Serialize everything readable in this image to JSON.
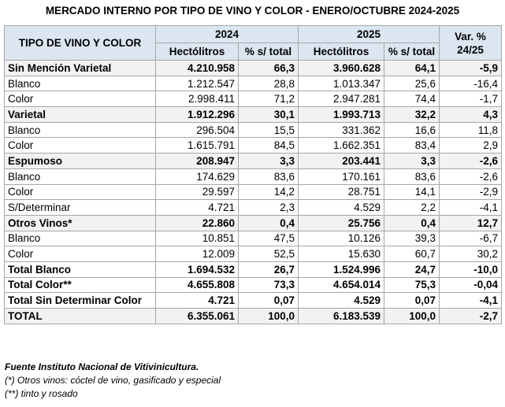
{
  "title": "MERCADO INTERNO POR TIPO DE VINO Y COLOR  - ENERO/OCTUBRE 2024-2025",
  "table": {
    "header": {
      "first": "TIPO DE VINO Y COLOR",
      "years": [
        "2024",
        "2025"
      ],
      "var": "Var. %\n24/25",
      "sub": [
        "Hectólitros",
        "% s/ total",
        "Hectólitros",
        "% s/ total"
      ]
    },
    "rows": [
      {
        "cells": [
          "Sin Mención Varietal",
          "4.210.958",
          "66,3",
          "3.960.628",
          "64,1",
          "-5,9"
        ],
        "bold": true,
        "shaded": true
      },
      {
        "cells": [
          "Blanco",
          "1.212.547",
          "28,8",
          "1.013.347",
          "25,6",
          "-16,4"
        ],
        "bold": false,
        "shaded": false
      },
      {
        "cells": [
          "Color",
          "2.998.411",
          "71,2",
          "2.947.281",
          "74,4",
          "-1,7"
        ],
        "bold": false,
        "shaded": false
      },
      {
        "cells": [
          "Varietal",
          "1.912.296",
          "30,1",
          "1.993.713",
          "32,2",
          "4,3"
        ],
        "bold": true,
        "shaded": true
      },
      {
        "cells": [
          "Blanco",
          "296.504",
          "15,5",
          "331.362",
          "16,6",
          "11,8"
        ],
        "bold": false,
        "shaded": false
      },
      {
        "cells": [
          "Color",
          "1.615.791",
          "84,5",
          "1.662.351",
          "83,4",
          "2,9"
        ],
        "bold": false,
        "shaded": false
      },
      {
        "cells": [
          "Espumoso",
          "208.947",
          "3,3",
          "203.441",
          "3,3",
          "-2,6"
        ],
        "bold": true,
        "shaded": true
      },
      {
        "cells": [
          "Blanco",
          "174.629",
          "83,6",
          "170.161",
          "83,6",
          "-2,6"
        ],
        "bold": false,
        "shaded": false
      },
      {
        "cells": [
          "Color",
          "29.597",
          "14,2",
          "28.751",
          "14,1",
          "-2,9"
        ],
        "bold": false,
        "shaded": false
      },
      {
        "cells": [
          "S/Determinar",
          "4.721",
          "2,3",
          "4.529",
          "2,2",
          "-4,1"
        ],
        "bold": false,
        "shaded": false
      },
      {
        "cells": [
          "Otros Vinos*",
          "22.860",
          "0,4",
          "25.756",
          "0,4",
          "12,7"
        ],
        "bold": true,
        "shaded": true
      },
      {
        "cells": [
          "Blanco",
          "10.851",
          "47,5",
          "10.126",
          "39,3",
          "-6,7"
        ],
        "bold": false,
        "shaded": false
      },
      {
        "cells": [
          "Color",
          "12.009",
          "52,5",
          "15.630",
          "60,7",
          "30,2"
        ],
        "bold": false,
        "shaded": false
      },
      {
        "cells": [
          "Total Blanco",
          "1.694.532",
          "26,7",
          "1.524.996",
          "24,7",
          "-10,0"
        ],
        "bold": true,
        "shaded": false
      },
      {
        "cells": [
          "Total Color**",
          "4.655.808",
          "73,3",
          "4.654.014",
          "75,3",
          "-0,04"
        ],
        "bold": true,
        "shaded": false
      },
      {
        "cells": [
          "Total Sin Determinar Color",
          "4.721",
          "0,07",
          "4.529",
          "0,07",
          "-4,1"
        ],
        "bold": true,
        "shaded": false
      },
      {
        "cells": [
          "TOTAL",
          "6.355.061",
          "100,0",
          "6.183.539",
          "100,0",
          "-2,7"
        ],
        "bold": true,
        "shaded": true
      }
    ]
  },
  "notes": [
    "Fuente Instituto Nacional de Vitivinicultura.",
    "(*) Otros vinos: cóctel de vino, gasificado y especial",
    "(**) tinto y rosado"
  ]
}
